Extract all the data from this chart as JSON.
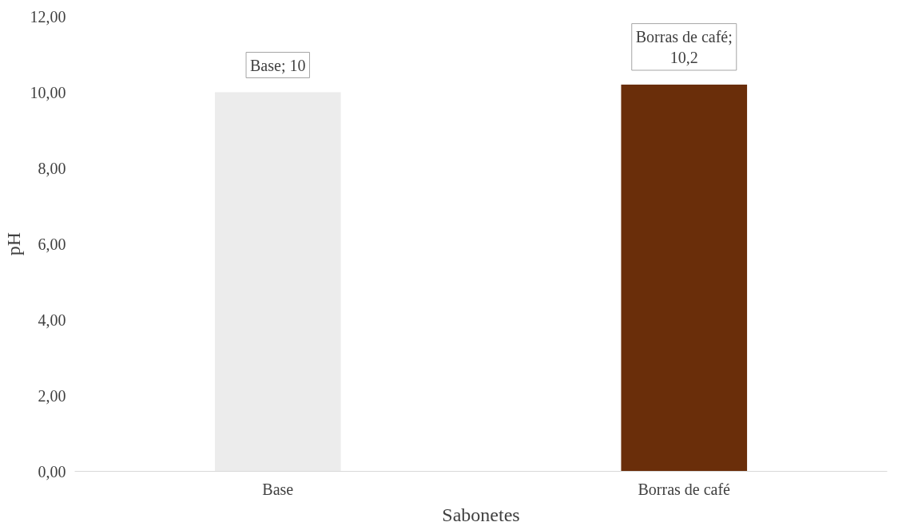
{
  "chart_data": {
    "type": "bar",
    "xlabel": "Sabonetes",
    "ylabel": "pH",
    "categories": [
      "Base",
      "Borras de café"
    ],
    "values": [
      10,
      10.2
    ],
    "colors": [
      "#ececec",
      "#6a2e0a"
    ],
    "value_labels": [
      "Base; 10",
      "Borras de café; 10,2"
    ],
    "ylim": [
      0,
      12
    ],
    "yticks": [
      {
        "value": 0,
        "label": "0,00"
      },
      {
        "value": 2,
        "label": "2,00"
      },
      {
        "value": 4,
        "label": "4,00"
      },
      {
        "value": 6,
        "label": "6,00"
      },
      {
        "value": 8,
        "label": "8,00"
      },
      {
        "value": 10,
        "label": "10,00"
      },
      {
        "value": 12,
        "label": "12,00"
      }
    ],
    "grid": false
  }
}
